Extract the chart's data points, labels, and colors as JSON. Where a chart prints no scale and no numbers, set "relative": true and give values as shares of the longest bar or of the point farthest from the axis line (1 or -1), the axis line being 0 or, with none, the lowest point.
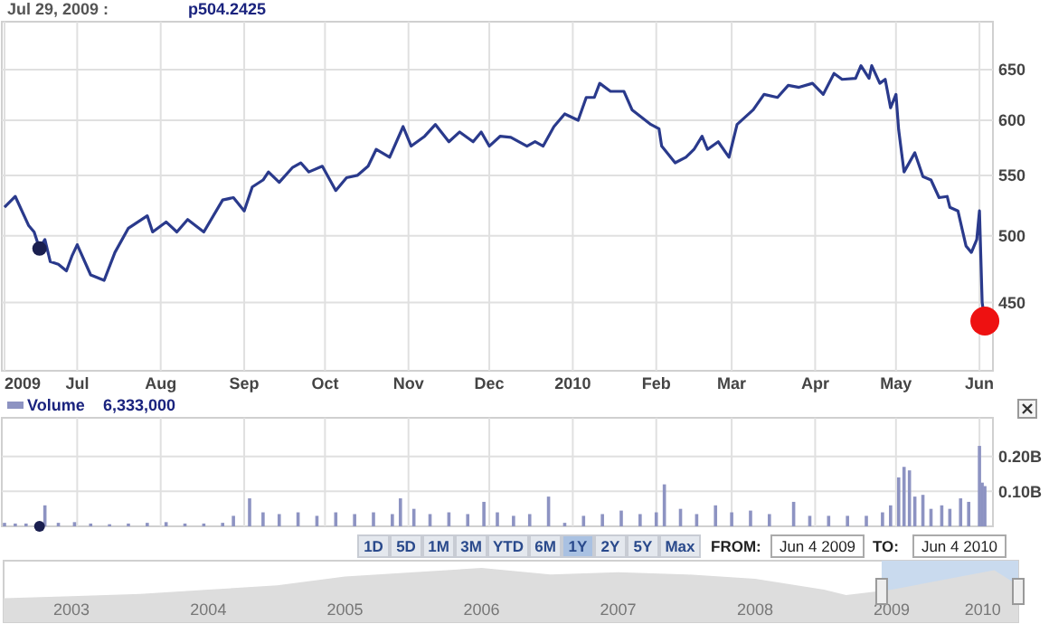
{
  "chart_data": [
    {
      "type": "line",
      "annotations": [
        "Jul 29, 2009 :",
        "p504.2425"
      ],
      "log": true,
      "grid": true,
      "xlim": [
        "2009-06-03",
        "2010-06-06"
      ],
      "ylim": [
        404,
        697
      ],
      "yticks": [
        450,
        500,
        550,
        600,
        650
      ],
      "xticks": [
        {
          "value": "2009-06-04",
          "label": "2009"
        },
        {
          "value": "2009-07-01",
          "label": "Jul"
        },
        {
          "value": "2009-08-01",
          "label": "Aug"
        },
        {
          "value": "2009-09-01",
          "label": "Sep"
        },
        {
          "value": "2009-10-01",
          "label": "Oct"
        },
        {
          "value": "2009-11-01",
          "label": "Nov"
        },
        {
          "value": "2009-12-01",
          "label": "Dec"
        },
        {
          "value": "2010-01-01",
          "label": "2010"
        },
        {
          "value": "2010-02-01",
          "label": "Feb"
        },
        {
          "value": "2010-03-01",
          "label": "Mar"
        },
        {
          "value": "2010-04-01",
          "label": "Apr"
        },
        {
          "value": "2010-05-01",
          "label": "May"
        },
        {
          "value": "2010-06-01",
          "label": "Jun"
        }
      ],
      "series": [
        {
          "type": "line",
          "color": "#2a3a8c",
          "x": [
            "2009-06-04",
            "2009-06-08",
            "2009-06-13",
            "2009-06-15",
            "2009-06-17",
            "2009-06-19",
            "2009-06-21",
            "2009-06-24",
            "2009-06-27",
            "2009-06-29",
            "2009-07-01",
            "2009-07-06",
            "2009-07-11",
            "2009-07-15",
            "2009-07-20",
            "2009-07-27",
            "2009-07-29",
            "2009-08-03",
            "2009-08-07",
            "2009-08-11",
            "2009-08-17",
            "2009-08-24",
            "2009-08-28",
            "2009-09-01",
            "2009-09-04",
            "2009-09-08",
            "2009-09-10",
            "2009-09-14",
            "2009-09-19",
            "2009-09-22",
            "2009-09-25",
            "2009-09-30",
            "2009-10-05",
            "2009-10-09",
            "2009-10-13",
            "2009-10-17",
            "2009-10-20",
            "2009-10-25",
            "2009-10-30",
            "2009-11-02",
            "2009-11-07",
            "2009-11-11",
            "2009-11-16",
            "2009-11-20",
            "2009-11-25",
            "2009-11-28",
            "2009-12-01",
            "2009-12-05",
            "2009-12-09",
            "2009-12-15",
            "2009-12-18",
            "2009-12-21",
            "2009-12-25",
            "2009-12-29",
            "2010-01-03",
            "2010-01-06",
            "2010-01-09",
            "2010-01-11",
            "2010-01-15",
            "2010-01-20",
            "2010-01-23",
            "2010-01-30",
            "2010-02-02",
            "2010-02-03",
            "2010-02-08",
            "2010-02-12",
            "2010-02-15",
            "2010-02-18",
            "2010-02-20",
            "2010-02-24",
            "2010-02-28",
            "2010-03-03",
            "2010-03-09",
            "2010-03-13",
            "2010-03-18",
            "2010-03-22",
            "2010-03-26",
            "2010-03-31",
            "2010-04-04",
            "2010-04-08",
            "2010-04-11",
            "2010-04-16",
            "2010-04-18",
            "2010-04-21",
            "2010-04-22",
            "2010-04-25",
            "2010-04-27",
            "2010-04-29",
            "2010-05-01",
            "2010-05-02",
            "2010-05-04",
            "2010-05-08",
            "2010-05-11",
            "2010-05-14",
            "2010-05-17",
            "2010-05-20",
            "2010-05-21",
            "2010-05-24",
            "2010-05-27",
            "2010-05-29",
            "2010-05-31",
            "2010-06-01",
            "2010-06-02",
            "2010-06-03"
          ],
          "values": [
            523,
            532,
            508,
            503,
            490,
            497,
            480,
            478,
            473,
            484,
            493,
            470,
            466,
            487,
            506,
            516,
            503,
            511,
            503,
            513,
            503,
            529,
            531,
            520,
            540,
            546,
            553,
            544,
            557,
            561,
            553,
            558,
            537,
            548,
            550,
            558,
            573,
            566,
            594,
            576,
            585,
            596,
            580,
            589,
            580,
            589,
            576,
            585,
            584,
            576,
            580,
            576,
            594,
            606,
            600,
            622,
            622,
            636,
            628,
            628,
            610,
            596,
            592,
            576,
            561,
            566,
            573,
            585,
            573,
            580,
            566,
            596,
            610,
            625,
            622,
            634,
            632,
            636,
            625,
            646,
            640,
            641,
            654,
            641,
            654,
            636,
            640,
            612,
            625,
            591,
            553,
            570,
            549,
            546,
            531,
            532,
            523,
            520,
            492,
            487,
            497,
            520,
            450,
            437
          ]
        },
        {
          "type": "scatter",
          "color": "#ee1111",
          "marker": "circle",
          "x": [
            "2010-06-03"
          ],
          "values": [
            437
          ]
        },
        {
          "type": "scatter",
          "color": "#1a1f4f",
          "marker": "circle",
          "x": [
            "2009-06-17"
          ],
          "values": [
            490
          ]
        }
      ]
    },
    {
      "type": "bar",
      "legend": "top left",
      "annotations": [
        "6,333,000"
      ],
      "grid": true,
      "tick_labels": "y",
      "xlim": [
        "2009-06-03",
        "2010-06-06"
      ],
      "ylim": [
        0,
        0.3
      ],
      "yticks": [
        {
          "value": 0.1,
          "label": "0.10B"
        },
        {
          "value": 0.2,
          "label": "0.20B"
        }
      ],
      "xticks": [
        {
          "value": "2009-07-01",
          "label": null
        },
        {
          "value": "2009-08-01",
          "label": null
        },
        {
          "value": "2009-09-01",
          "label": null
        },
        {
          "value": "2009-10-01",
          "label": null
        },
        {
          "value": "2009-11-01",
          "label": null
        },
        {
          "value": "2009-12-01",
          "label": null
        },
        {
          "value": "2010-01-01",
          "label": null
        },
        {
          "value": "2010-02-01",
          "label": null
        },
        {
          "value": "2010-03-01",
          "label": null
        },
        {
          "value": "2010-04-01",
          "label": null
        },
        {
          "value": "2010-05-01",
          "label": null
        },
        {
          "value": "2010-06-01",
          "label": null
        }
      ],
      "series": [
        {
          "type": "bar",
          "name": "Volume",
          "color": "#8d93c2",
          "x": [
            "2009-06-04",
            "2009-06-08",
            "2009-06-12",
            "2009-06-19",
            "2009-06-24",
            "2009-06-30",
            "2009-07-06",
            "2009-07-13",
            "2009-07-20",
            "2009-07-27",
            "2009-08-03",
            "2009-08-10",
            "2009-08-17",
            "2009-08-24",
            "2009-08-28",
            "2009-09-03",
            "2009-09-08",
            "2009-09-14",
            "2009-09-21",
            "2009-09-28",
            "2009-10-05",
            "2009-10-12",
            "2009-10-19",
            "2009-10-26",
            "2009-10-29",
            "2009-11-03",
            "2009-11-09",
            "2009-11-16",
            "2009-11-23",
            "2009-11-29",
            "2009-12-04",
            "2009-12-10",
            "2009-12-16",
            "2009-12-23",
            "2009-12-29",
            "2010-01-05",
            "2010-01-12",
            "2010-01-19",
            "2010-01-26",
            "2010-02-01",
            "2010-02-04",
            "2010-02-10",
            "2010-02-16",
            "2010-02-23",
            "2010-03-01",
            "2010-03-08",
            "2010-03-15",
            "2010-03-24",
            "2010-03-30",
            "2010-04-06",
            "2010-04-13",
            "2010-04-20",
            "2010-04-26",
            "2010-04-29",
            "2010-05-02",
            "2010-05-04",
            "2010-05-06",
            "2010-05-08",
            "2010-05-11",
            "2010-05-14",
            "2010-05-18",
            "2010-05-21",
            "2010-05-25",
            "2010-05-28",
            "2010-06-01",
            "2010-06-02",
            "2010-06-03"
          ],
          "values": [
            0.01,
            0.008,
            0.008,
            0.06,
            0.01,
            0.012,
            0.008,
            0.006,
            0.008,
            0.01,
            0.012,
            0.008,
            0.008,
            0.01,
            0.03,
            0.08,
            0.04,
            0.035,
            0.04,
            0.03,
            0.04,
            0.035,
            0.04,
            0.035,
            0.08,
            0.05,
            0.035,
            0.04,
            0.035,
            0.07,
            0.04,
            0.03,
            0.035,
            0.085,
            0.01,
            0.03,
            0.035,
            0.045,
            0.035,
            0.04,
            0.12,
            0.05,
            0.035,
            0.06,
            0.04,
            0.045,
            0.035,
            0.07,
            0.03,
            0.03,
            0.03,
            0.03,
            0.04,
            0.06,
            0.14,
            0.17,
            0.16,
            0.085,
            0.09,
            0.05,
            0.06,
            0.05,
            0.08,
            0.07,
            0.23,
            0.125,
            0.115
          ]
        },
        {
          "type": "scatter",
          "color": "#1a1f4f",
          "marker": "circle",
          "x": [
            "2009-06-17"
          ],
          "values": [
            0
          ]
        }
      ]
    },
    {
      "type": "area",
      "relative": true,
      "tick_labels": "x",
      "xlim": [
        "2003-01-01",
        "2010-06-04"
      ],
      "xticks": [
        {
          "value": "2003-07-01",
          "label": "2003"
        },
        {
          "value": "2004-07-01",
          "label": "2004"
        },
        {
          "value": "2005-07-01",
          "label": "2005"
        },
        {
          "value": "2006-07-01",
          "label": "2006"
        },
        {
          "value": "2007-07-01",
          "label": "2007"
        },
        {
          "value": "2008-07-01",
          "label": "2008"
        },
        {
          "value": "2009-07-01",
          "label": "2009"
        },
        {
          "value": "2010-03-01",
          "label": "2010"
        }
      ],
      "bands": [
        {
          "axis": "x",
          "from": "2009-06-04",
          "to": "2010-06-04",
          "color": "#c9daee"
        }
      ],
      "series": [
        {
          "type": "area",
          "color": "#dddddd",
          "x": [
            "2003-01-01",
            "2003-07-01",
            "2004-01-01",
            "2004-07-01",
            "2005-01-01",
            "2005-07-01",
            "2006-01-01",
            "2006-07-01",
            "2007-01-01",
            "2007-07-01",
            "2008-01-01",
            "2008-07-01",
            "2009-01-01",
            "2009-03-01",
            "2009-07-01",
            "2010-01-01",
            "2010-04-01",
            "2010-06-04"
          ],
          "values": [
            0.44,
            0.48,
            0.52,
            0.6,
            0.68,
            0.84,
            0.92,
            1,
            0.88,
            0.92,
            0.88,
            0.8,
            0.6,
            0.5,
            0.6,
            0.84,
            0.96,
            0.68
          ]
        }
      ]
    },
    {
      "type": "other",
      "categories": [
        "1D",
        "5D",
        "1M",
        "3M",
        "YTD",
        "6M",
        "1Y",
        "2Y",
        "5Y",
        "Max"
      ],
      "colors": [
        "#e4e8ee",
        "#e4e8ee",
        "#e4e8ee",
        "#e4e8ee",
        "#e4e8ee",
        "#e4e8ee",
        "#a9c1e2",
        "#e4e8ee",
        "#e4e8ee",
        "#e4e8ee"
      ],
      "annotations": [
        "FROM:",
        "Jun 4 2009",
        "TO:",
        "Jun 4 2010"
      ]
    }
  ]
}
